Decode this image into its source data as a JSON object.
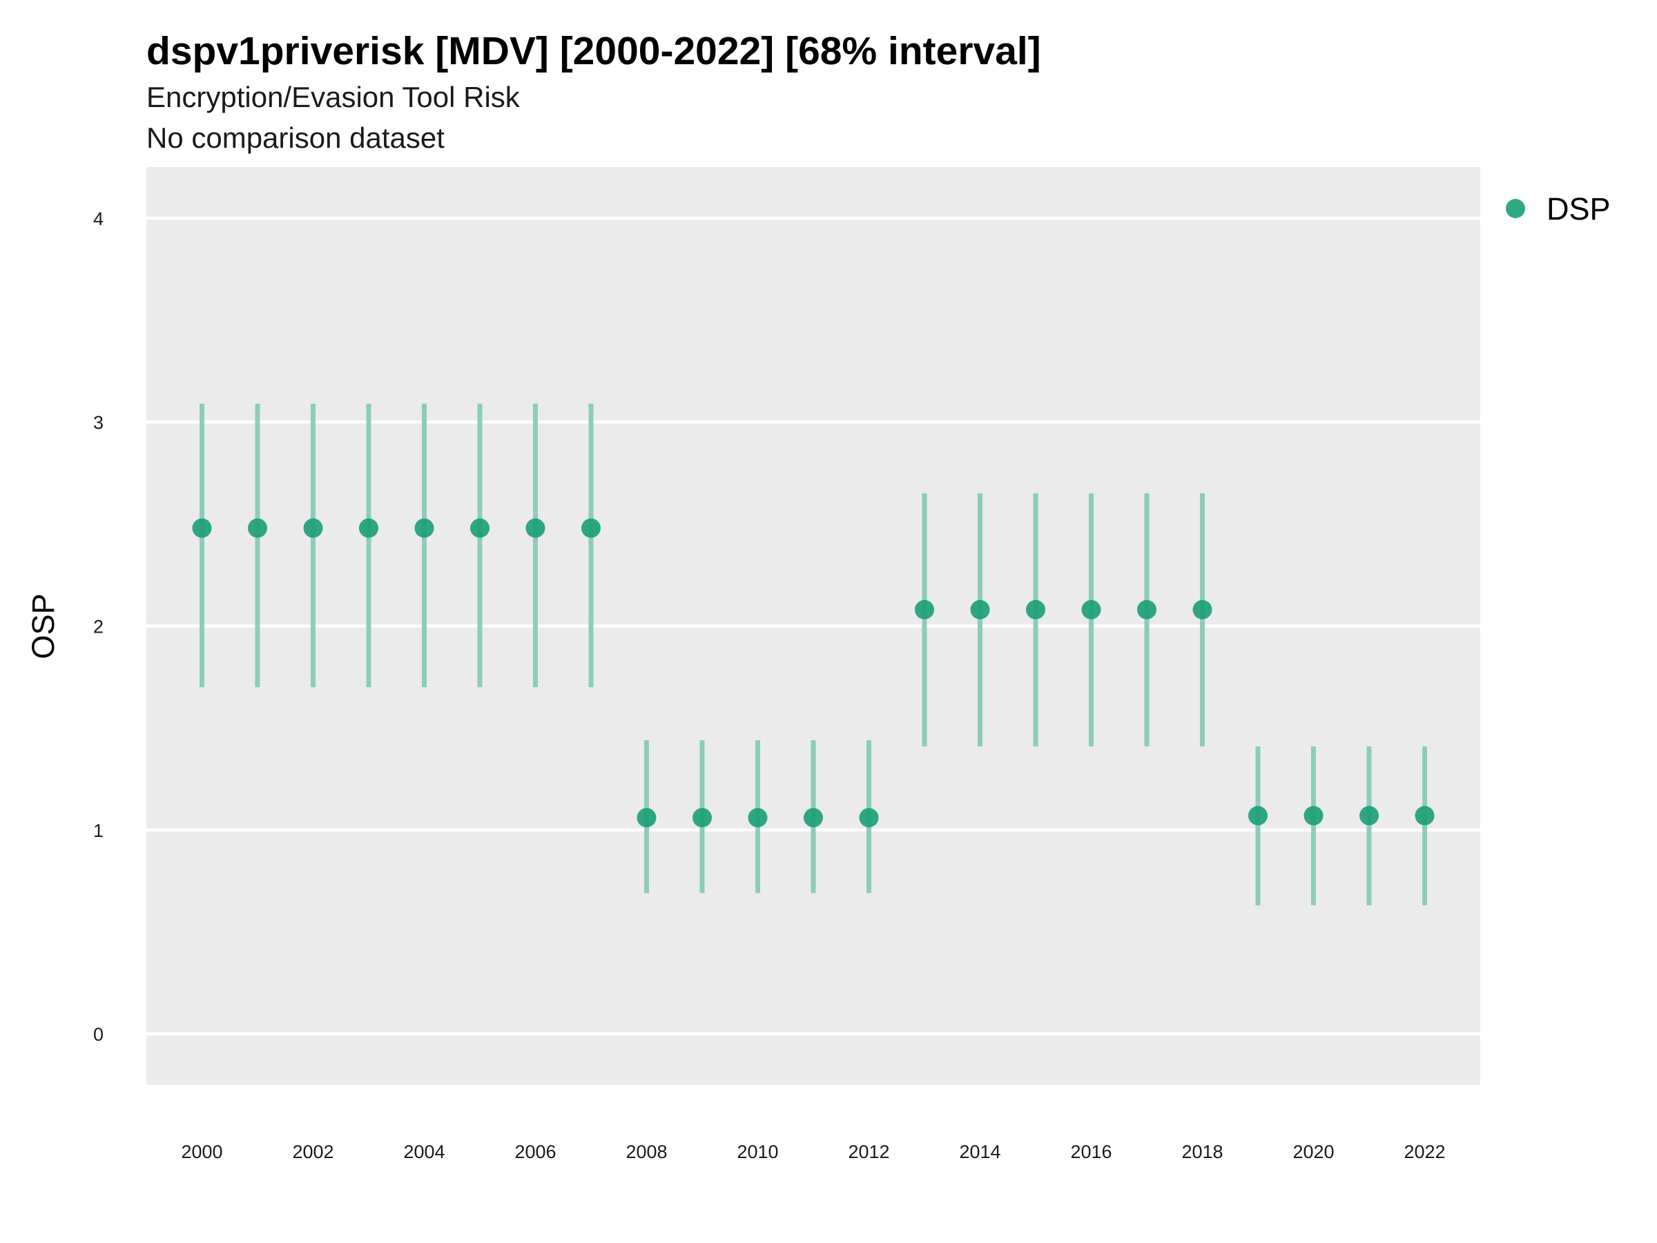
{
  "chart_data": {
    "type": "scatter",
    "title": "dspv1priverisk [MDV] [2000-2022] [68% interval]",
    "subtitle": "Encryption/Evasion Tool Risk",
    "subtitle2": "No comparison dataset",
    "xlabel": "",
    "ylabel": "OSP",
    "xlim": [
      1999,
      2023
    ],
    "ylim": [
      -0.25,
      4.25
    ],
    "x_ticks": [
      2000,
      2002,
      2004,
      2006,
      2008,
      2010,
      2012,
      2014,
      2016,
      2018,
      2020,
      2022
    ],
    "y_ticks": [
      0,
      1,
      2,
      3,
      4
    ],
    "grid": true,
    "legend_position": "right",
    "colors": {
      "point": "#1a9e77",
      "errorbar": "#8dcdb7",
      "panel": "#ebebeb",
      "grid": "#ffffff"
    },
    "series": [
      {
        "name": "DSP",
        "points": [
          {
            "x": 2000,
            "y": 2.48,
            "low": 1.7,
            "high": 3.09
          },
          {
            "x": 2001,
            "y": 2.48,
            "low": 1.7,
            "high": 3.09
          },
          {
            "x": 2002,
            "y": 2.48,
            "low": 1.7,
            "high": 3.09
          },
          {
            "x": 2003,
            "y": 2.48,
            "low": 1.7,
            "high": 3.09
          },
          {
            "x": 2004,
            "y": 2.48,
            "low": 1.7,
            "high": 3.09
          },
          {
            "x": 2005,
            "y": 2.48,
            "low": 1.7,
            "high": 3.09
          },
          {
            "x": 2006,
            "y": 2.48,
            "low": 1.7,
            "high": 3.09
          },
          {
            "x": 2007,
            "y": 2.48,
            "low": 1.7,
            "high": 3.09
          },
          {
            "x": 2008,
            "y": 1.06,
            "low": 0.69,
            "high": 1.44
          },
          {
            "x": 2009,
            "y": 1.06,
            "low": 0.69,
            "high": 1.44
          },
          {
            "x": 2010,
            "y": 1.06,
            "low": 0.69,
            "high": 1.44
          },
          {
            "x": 2011,
            "y": 1.06,
            "low": 0.69,
            "high": 1.44
          },
          {
            "x": 2012,
            "y": 1.06,
            "low": 0.69,
            "high": 1.44
          },
          {
            "x": 2013,
            "y": 2.08,
            "low": 1.41,
            "high": 2.65
          },
          {
            "x": 2014,
            "y": 2.08,
            "low": 1.41,
            "high": 2.65
          },
          {
            "x": 2015,
            "y": 2.08,
            "low": 1.41,
            "high": 2.65
          },
          {
            "x": 2016,
            "y": 2.08,
            "low": 1.41,
            "high": 2.65
          },
          {
            "x": 2017,
            "y": 2.08,
            "low": 1.41,
            "high": 2.65
          },
          {
            "x": 2018,
            "y": 2.08,
            "low": 1.41,
            "high": 2.65
          },
          {
            "x": 2019,
            "y": 1.07,
            "low": 0.63,
            "high": 1.41
          },
          {
            "x": 2020,
            "y": 1.07,
            "low": 0.63,
            "high": 1.41
          },
          {
            "x": 2021,
            "y": 1.07,
            "low": 0.63,
            "high": 1.41
          },
          {
            "x": 2022,
            "y": 1.07,
            "low": 0.63,
            "high": 1.41
          }
        ]
      }
    ]
  }
}
